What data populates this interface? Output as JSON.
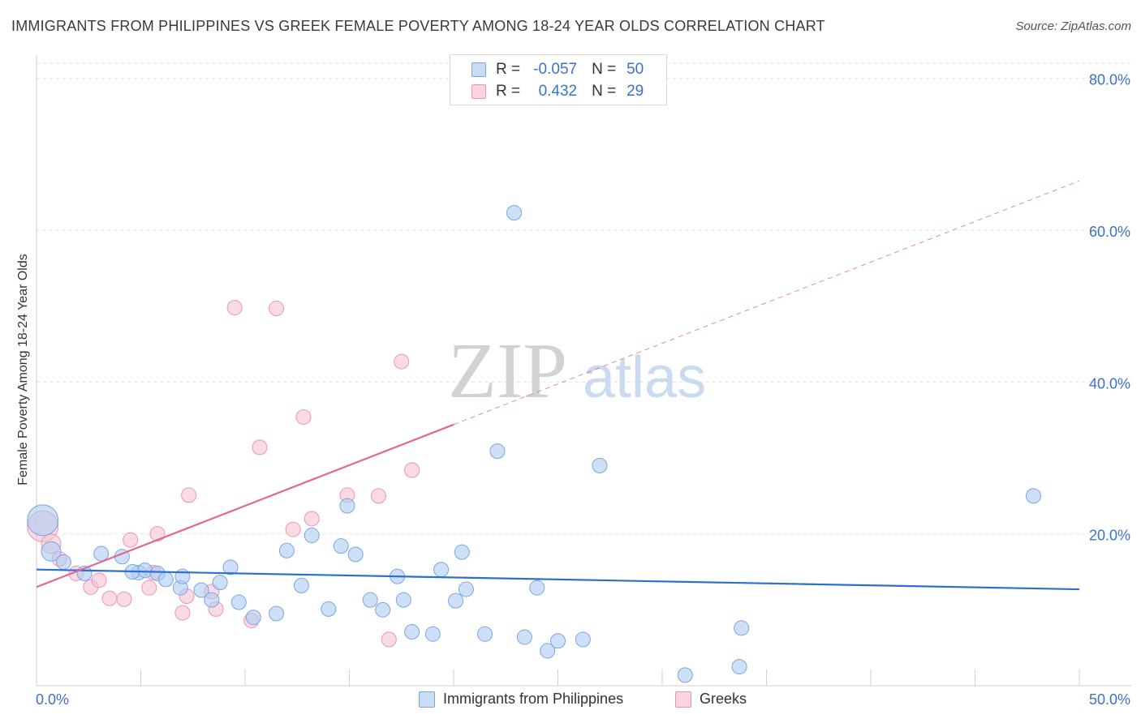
{
  "title": "IMMIGRANTS FROM PHILIPPINES VS GREEK FEMALE POVERTY AMONG 18-24 YEAR OLDS CORRELATION CHART",
  "source": "Source: ZipAtlas.com",
  "watermark": {
    "zip": "ZIP",
    "atlas": "atlas"
  },
  "colors": {
    "blue_fill": "#aecbf2",
    "blue_stroke": "#7aa6e0",
    "blue_line": "#2a6fd1",
    "pink_fill": "#f7c3d3",
    "pink_stroke": "#ec95b0",
    "pink_line": "#e0698f",
    "tick_text": "#3a72c9"
  },
  "legend": {
    "rows": [
      {
        "r_label": "R =",
        "r_value": "-0.057",
        "n_label": "N =",
        "n_value": "50",
        "series": "blue"
      },
      {
        "r_label": "R =",
        "r_value": "0.432",
        "n_label": "N =",
        "n_value": "29",
        "series": "pink"
      }
    ]
  },
  "bottom_legend": [
    {
      "label": "Immigrants from Philippines",
      "series": "blue"
    },
    {
      "label": "Greeks",
      "series": "pink"
    }
  ],
  "chart_data": {
    "type": "scatter",
    "title": "IMMIGRANTS FROM PHILIPPINES VS GREEK FEMALE POVERTY AMONG 18-24 YEAR OLDS CORRELATION CHART",
    "xlabel": "",
    "ylabel": "Female Poverty Among 18-24 Year Olds",
    "xlim": [
      0,
      50
    ],
    "ylim": [
      0,
      82
    ],
    "x_tick_labels": [
      "0.0%",
      "50.0%"
    ],
    "y_ticks": [
      20,
      40,
      60,
      80
    ],
    "y_tick_labels": [
      "20.0%",
      "40.0%",
      "60.0%",
      "80.0%"
    ],
    "grid": true,
    "series": [
      {
        "name": "Immigrants from Philippines",
        "color": "blue",
        "trend": {
          "x": [
            0,
            50
          ],
          "y": [
            15.3,
            12.7
          ],
          "dashed_from": null
        },
        "points": [
          [
            0.3,
            21.8,
            3
          ],
          [
            0.7,
            17.7,
            2
          ],
          [
            1.3,
            16.3,
            1
          ],
          [
            2.3,
            14.8,
            1
          ],
          [
            3.1,
            17.4,
            1
          ],
          [
            4.1,
            17.0,
            1
          ],
          [
            4.9,
            14.9,
            1
          ],
          [
            4.6,
            15.0,
            1
          ],
          [
            5.2,
            15.2,
            1
          ],
          [
            5.8,
            14.8,
            1
          ],
          [
            6.2,
            14.0,
            1
          ],
          [
            6.9,
            12.9,
            1
          ],
          [
            7.0,
            14.4,
            1
          ],
          [
            7.9,
            12.6,
            1
          ],
          [
            8.4,
            11.3,
            1
          ],
          [
            8.8,
            13.6,
            1
          ],
          [
            9.3,
            15.6,
            1
          ],
          [
            9.7,
            11.0,
            1
          ],
          [
            10.4,
            9.0,
            1
          ],
          [
            11.5,
            9.5,
            1
          ],
          [
            12.0,
            17.8,
            1
          ],
          [
            12.7,
            13.2,
            1
          ],
          [
            13.2,
            19.8,
            1
          ],
          [
            14.0,
            10.1,
            1
          ],
          [
            14.6,
            18.4,
            1
          ],
          [
            14.9,
            23.7,
            1
          ],
          [
            15.3,
            17.3,
            1
          ],
          [
            16.0,
            11.3,
            1
          ],
          [
            16.6,
            10.0,
            1
          ],
          [
            17.3,
            14.4,
            1
          ],
          [
            17.6,
            11.3,
            1
          ],
          [
            18.0,
            7.1,
            1
          ],
          [
            19.0,
            6.8,
            1
          ],
          [
            19.4,
            15.3,
            1
          ],
          [
            20.1,
            11.2,
            1
          ],
          [
            20.4,
            17.6,
            1
          ],
          [
            20.6,
            12.7,
            1
          ],
          [
            21.5,
            6.8,
            1
          ],
          [
            22.1,
            30.9,
            1
          ],
          [
            22.9,
            62.3,
            1
          ],
          [
            23.4,
            6.4,
            1
          ],
          [
            24.0,
            12.9,
            1
          ],
          [
            24.5,
            4.6,
            1
          ],
          [
            25.0,
            5.9,
            1
          ],
          [
            26.2,
            6.1,
            1
          ],
          [
            27.0,
            29.0,
            1
          ],
          [
            31.1,
            1.4,
            1
          ],
          [
            33.7,
            2.5,
            1
          ],
          [
            33.8,
            7.6,
            1
          ],
          [
            47.8,
            25.0,
            1
          ]
        ]
      },
      {
        "name": "Greeks",
        "color": "pink",
        "trend": {
          "x": [
            0,
            50
          ],
          "y": [
            13.0,
            66.5
          ],
          "dashed_from": 20
        },
        "points": [
          [
            0.3,
            21.0,
            3
          ],
          [
            0.7,
            18.7,
            2
          ],
          [
            1.1,
            16.7,
            1
          ],
          [
            1.9,
            14.8,
            1
          ],
          [
            2.6,
            13.0,
            1
          ],
          [
            3.0,
            13.9,
            1
          ],
          [
            3.5,
            11.5,
            1
          ],
          [
            4.2,
            11.4,
            1
          ],
          [
            4.5,
            19.2,
            1
          ],
          [
            5.4,
            12.9,
            1
          ],
          [
            5.6,
            14.9,
            1
          ],
          [
            5.8,
            20.0,
            1
          ],
          [
            7.0,
            9.6,
            1
          ],
          [
            7.2,
            11.8,
            1
          ],
          [
            7.3,
            25.1,
            1
          ],
          [
            8.4,
            12.4,
            1
          ],
          [
            8.6,
            10.1,
            1
          ],
          [
            9.5,
            49.8,
            1
          ],
          [
            10.3,
            8.6,
            1
          ],
          [
            10.7,
            31.4,
            1
          ],
          [
            11.5,
            49.7,
            1
          ],
          [
            12.3,
            20.6,
            1
          ],
          [
            12.8,
            35.4,
            1
          ],
          [
            13.2,
            22.0,
            1
          ],
          [
            14.9,
            25.1,
            1
          ],
          [
            16.4,
            25.0,
            1
          ],
          [
            16.9,
            6.1,
            1
          ],
          [
            17.5,
            42.7,
            1
          ],
          [
            18.0,
            28.4,
            1
          ]
        ]
      }
    ]
  }
}
